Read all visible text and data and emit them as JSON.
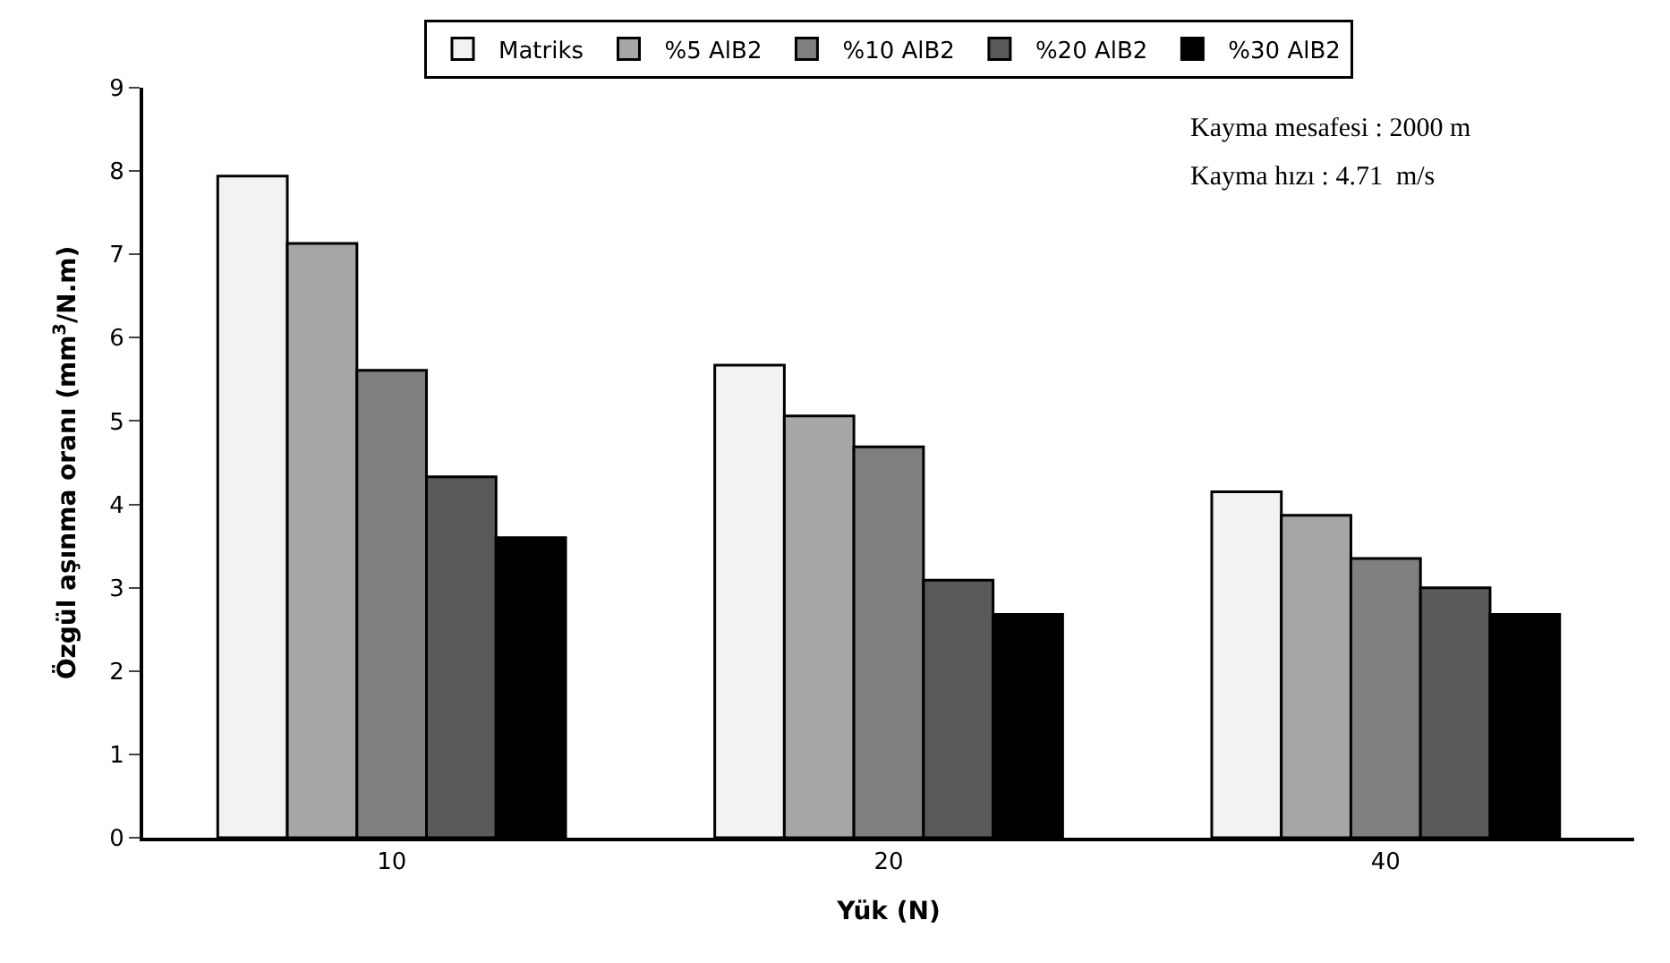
{
  "chart_data": {
    "type": "bar",
    "xlabel": "Yük (N)",
    "ylabel": "Özgül aşınma oranı (mm$^{3}$/N.m)",
    "categories": [
      "10",
      "20",
      "40"
    ],
    "series": [
      {
        "name": "Matriks",
        "color": "#f2f2f2",
        "values": [
          7.94,
          5.67,
          4.15
        ]
      },
      {
        "name": "%5 AlB2",
        "color": "#a6a6a6",
        "values": [
          7.13,
          5.06,
          3.87
        ]
      },
      {
        "name": "%10 AlB2",
        "color": "#7f7f7f",
        "values": [
          5.61,
          4.69,
          3.35
        ]
      },
      {
        "name": "%20 AlB2",
        "color": "#595959",
        "values": [
          4.33,
          3.09,
          3.0
        ]
      },
      {
        "name": "%30 AlB2",
        "color": "#000000",
        "values": [
          3.6,
          2.68,
          2.68
        ]
      }
    ],
    "ylim": [
      0,
      9
    ],
    "yticks": [
      0,
      1,
      2,
      3,
      4,
      5,
      6,
      7,
      8,
      9
    ],
    "legend": "top",
    "annotations": [
      "Kayma mesafesi : 2000 m",
      "Kayma hızı : 4.71  m/s"
    ]
  }
}
